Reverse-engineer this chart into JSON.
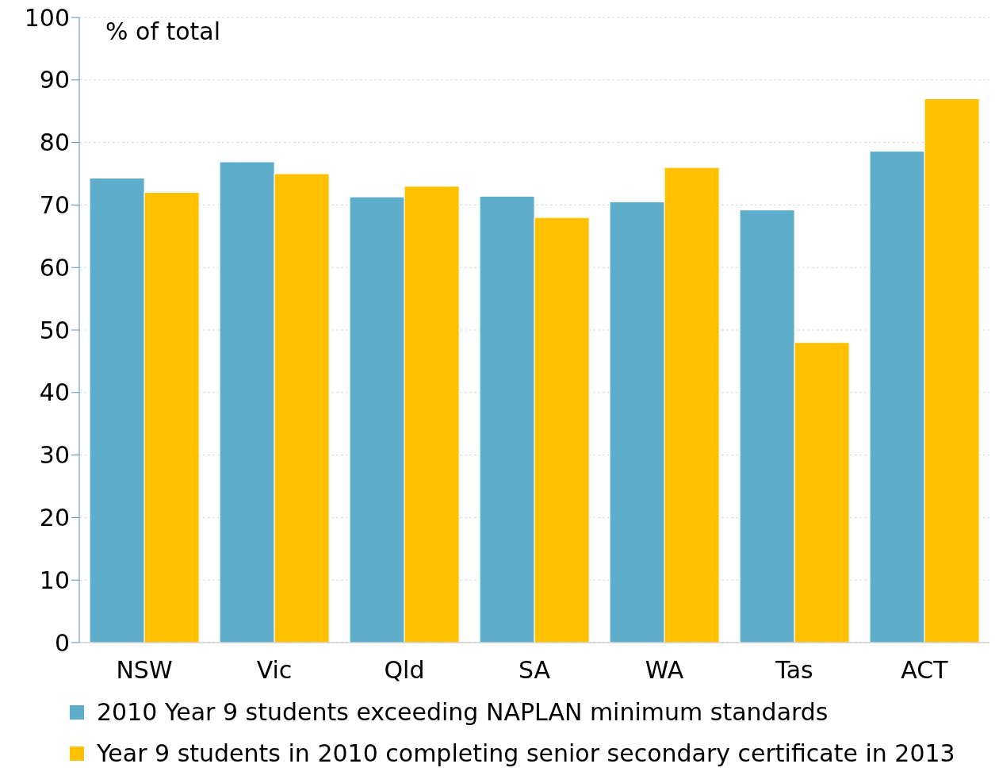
{
  "chart_data": {
    "type": "bar",
    "ylabel": "% of total",
    "categories": [
      "NSW",
      "Vic",
      "Qld",
      "SA",
      "WA",
      "Tas",
      "ACT"
    ],
    "series": [
      {
        "name": "2010 Year 9 students exceeding NAPLAN minimum standards",
        "color": "#5eaecb",
        "values": [
          74.3,
          76.9,
          71.3,
          71.4,
          70.5,
          69.2,
          78.6
        ]
      },
      {
        "name": "Year 9 students in 2010 completing senior secondary certificate in 2013",
        "color": "#ffc000",
        "values": [
          72,
          75,
          73,
          68,
          76,
          48,
          87
        ]
      }
    ],
    "ylim": [
      0,
      100
    ],
    "yticks": [
      0,
      10,
      20,
      30,
      40,
      50,
      60,
      70,
      80,
      90,
      100
    ],
    "grid": "y",
    "legend": "bottom"
  }
}
